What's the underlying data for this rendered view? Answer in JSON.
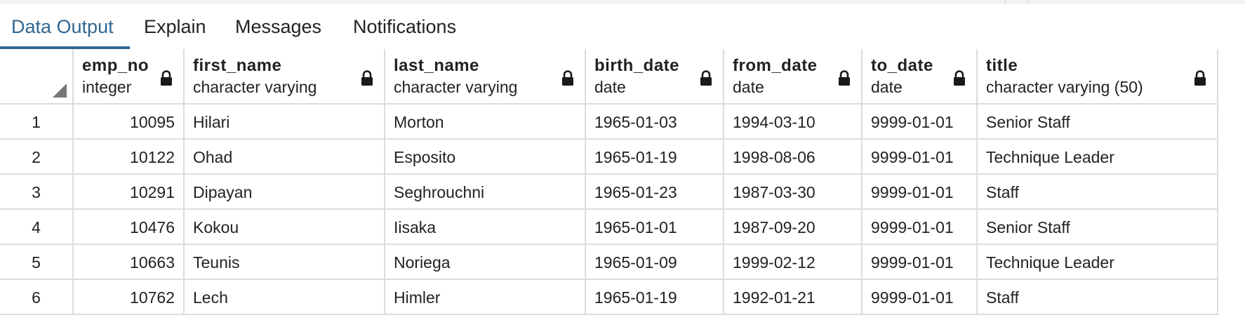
{
  "tabs": [
    {
      "label": "Data Output",
      "active": true
    },
    {
      "label": "Explain",
      "active": false
    },
    {
      "label": "Messages",
      "active": false
    },
    {
      "label": "Notifications",
      "active": false
    }
  ],
  "columns": [
    {
      "name": "emp_no",
      "type": "integer",
      "align": "right"
    },
    {
      "name": "first_name",
      "type": "character varying",
      "align": "left"
    },
    {
      "name": "last_name",
      "type": "character varying",
      "align": "left"
    },
    {
      "name": "birth_date",
      "type": "date",
      "align": "left"
    },
    {
      "name": "from_date",
      "type": "date",
      "align": "left"
    },
    {
      "name": "to_date",
      "type": "date",
      "align": "left"
    },
    {
      "name": "title",
      "type": "character varying (50)",
      "align": "left"
    }
  ],
  "rows": [
    {
      "row_no": "1",
      "cells": [
        "10095",
        "Hilari",
        "Morton",
        "1965-01-03",
        "1994-03-10",
        "9999-01-01",
        "Senior Staff"
      ]
    },
    {
      "row_no": "2",
      "cells": [
        "10122",
        "Ohad",
        "Esposito",
        "1965-01-19",
        "1998-08-06",
        "9999-01-01",
        "Technique Leader"
      ]
    },
    {
      "row_no": "3",
      "cells": [
        "10291",
        "Dipayan",
        "Seghrouchni",
        "1965-01-23",
        "1987-03-30",
        "9999-01-01",
        "Staff"
      ]
    },
    {
      "row_no": "4",
      "cells": [
        "10476",
        "Kokou",
        "Iisaka",
        "1965-01-01",
        "1987-09-20",
        "9999-01-01",
        "Senior Staff"
      ]
    },
    {
      "row_no": "5",
      "cells": [
        "10663",
        "Teunis",
        "Noriega",
        "1965-01-09",
        "1999-02-12",
        "9999-01-01",
        "Technique Leader"
      ]
    },
    {
      "row_no": "6",
      "cells": [
        "10762",
        "Lech",
        "Himler",
        "1965-01-19",
        "1992-01-21",
        "9999-01-01",
        "Staff"
      ]
    }
  ],
  "icons": {
    "column_lock": "lock-icon",
    "sort_corner": "select-all-corner-icon"
  },
  "colors": {
    "accent": "#326690",
    "grid_line": "#dcdcdc",
    "text": "#222222"
  }
}
